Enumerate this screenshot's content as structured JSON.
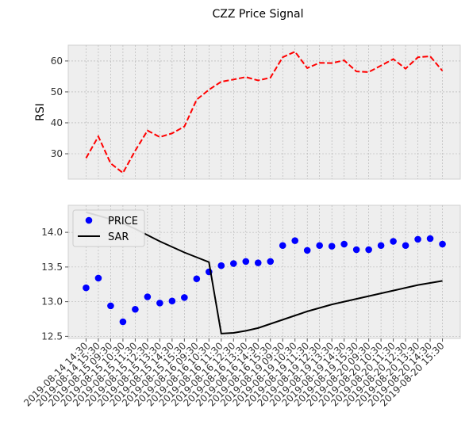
{
  "title": "CZZ Price Signal",
  "chart_data": [
    {
      "type": "line",
      "ylabel": "RSI",
      "grid": true,
      "series": [
        {
          "color": "#ff0000",
          "linestyle": "dashed",
          "values": [
            28.6,
            35.6,
            26.9,
            23.8,
            31.0,
            37.5,
            35.4,
            36.6,
            38.8,
            47.5,
            50.7,
            53.3,
            54.0,
            54.8,
            53.7,
            54.6,
            61.2,
            63.0,
            57.7,
            59.4,
            59.3,
            60.2,
            56.6,
            56.4,
            58.5,
            60.6,
            57.5,
            61.2,
            61.5,
            56.8
          ]
        }
      ],
      "ylim": [
        21.8,
        65.1
      ],
      "yticks": [
        30,
        40,
        50,
        60
      ]
    },
    {
      "type": "combo",
      "grid": true,
      "legend": "upper-left",
      "categories": [
        "2019-08-14 14:30",
        "2019-08-14 15:30",
        "2019-08-15 09:30",
        "2019-08-15 10:30",
        "2019-08-15 11:30",
        "2019-08-15 12:30",
        "2019-08-15 13:30",
        "2019-08-15 14:30",
        "2019-08-15 15:30",
        "2019-08-16 09:30",
        "2019-08-16 10:30",
        "2019-08-16 11:30",
        "2019-08-16 12:30",
        "2019-08-16 13:30",
        "2019-08-16 14:30",
        "2019-08-16 15:30",
        "2019-08-19 09:30",
        "2019-08-19 10:30",
        "2019-08-19 11:30",
        "2019-08-19 12:30",
        "2019-08-19 13:30",
        "2019-08-19 14:30",
        "2019-08-19 15:30",
        "2019-08-20 09:30",
        "2019-08-20 10:30",
        "2019-08-20 11:30",
        "2019-08-20 12:30",
        "2019-08-20 13:30",
        "2019-08-20 14:30",
        "2019-08-20 15:30"
      ],
      "series": [
        {
          "name": "PRICE",
          "kind": "scatter",
          "color": "#0000ff",
          "values": [
            13.2,
            13.34,
            12.94,
            12.71,
            12.89,
            13.07,
            12.98,
            13.01,
            13.06,
            13.33,
            13.43,
            13.52,
            13.55,
            13.58,
            13.56,
            13.58,
            13.81,
            13.88,
            13.74,
            13.81,
            13.8,
            13.83,
            13.75,
            13.75,
            13.81,
            13.87,
            13.81,
            13.9,
            13.91,
            13.83
          ]
        },
        {
          "name": "SAR",
          "kind": "line",
          "color": "#000000",
          "values": [
            14.29,
            14.24,
            14.19,
            14.13,
            14.05,
            13.96,
            13.87,
            13.79,
            13.71,
            13.64,
            13.57,
            12.54,
            12.55,
            12.58,
            12.62,
            12.68,
            12.74,
            12.8,
            12.86,
            12.91,
            12.96,
            13.0,
            13.04,
            13.08,
            13.12,
            13.16,
            13.2,
            13.24,
            13.27,
            13.3
          ]
        }
      ],
      "ylim": [
        12.47,
        14.39
      ],
      "yticks": [
        12.5,
        {
          "value": 13,
          "label": "13.0"
        },
        13.5,
        {
          "value": 14,
          "label": "14.0"
        }
      ]
    }
  ]
}
